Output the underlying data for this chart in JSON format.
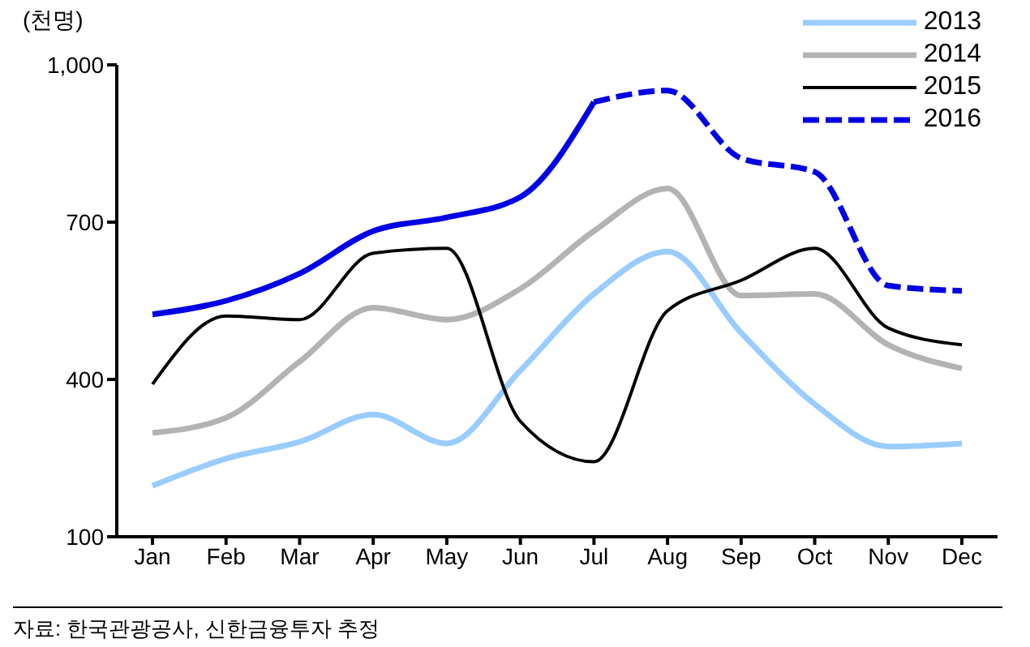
{
  "chart_data": {
    "type": "line",
    "ylabel": "(천명)",
    "categories": [
      "Jan",
      "Feb",
      "Mar",
      "Apr",
      "May",
      "Jun",
      "Jul",
      "Aug",
      "Sep",
      "Oct",
      "Nov",
      "Dec"
    ],
    "series": [
      {
        "name": "2013",
        "color": "#99ccff",
        "values": [
          197,
          249,
          281,
          333,
          278,
          417,
          563,
          644,
          489,
          353,
          272,
          278
        ]
      },
      {
        "name": "2014",
        "color": "#b3b3b3",
        "values": [
          298,
          327,
          434,
          537,
          514,
          573,
          683,
          764,
          560,
          563,
          466,
          421
        ]
      },
      {
        "name": "2015",
        "color": "#000000",
        "values": [
          391,
          521,
          514,
          641,
          650,
          320,
          243,
          531,
          589,
          650,
          498,
          466
        ]
      },
      {
        "color": "#0000e6",
        "line_style": "solid",
        "values": [
          524,
          550,
          602,
          683,
          709,
          748,
          929,
          null,
          null,
          null,
          null,
          null
        ]
      },
      {
        "name": "2016",
        "color": "#0000e6",
        "line_style": "dashed",
        "values": [
          null,
          null,
          null,
          null,
          null,
          null,
          929,
          951,
          822,
          796,
          579,
          569
        ]
      }
    ],
    "ylim": [
      100,
      1000
    ],
    "yticks": [
      100,
      400,
      700,
      {
        "value": 1000,
        "label": "1,000"
      }
    ],
    "grid": false,
    "legend": "top right",
    "annotations": [
      "자료: 한국관광공사, 신한금융투자 추정"
    ]
  }
}
